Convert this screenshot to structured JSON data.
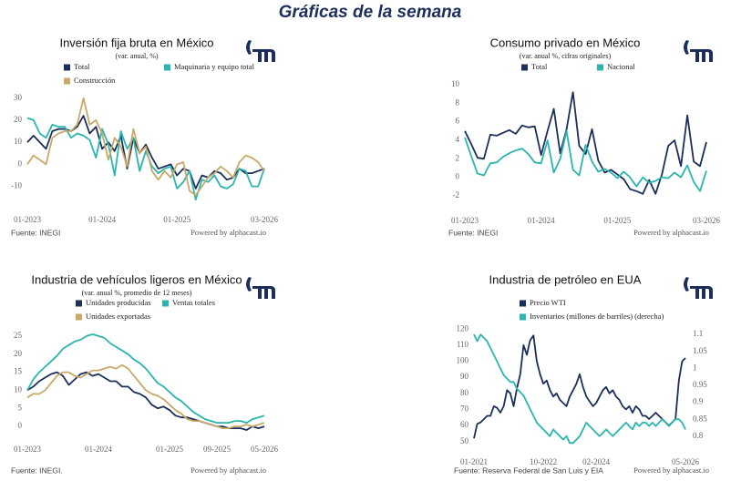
{
  "header": {
    "title": "Gráficas de la semana"
  },
  "chart_data": [
    {
      "type": "line",
      "title": "Inversión fija bruta en México",
      "subtitle": "(var. anual, %)",
      "source": "Fuente: INEGI",
      "credit": "Powered by alphacast.io",
      "grid": false,
      "categories": [
        "01-2023",
        null,
        null,
        null,
        null,
        null,
        null,
        null,
        null,
        null,
        null,
        null,
        "01-2024",
        null,
        null,
        null,
        null,
        null,
        null,
        null,
        null,
        null,
        null,
        null,
        "01-2025",
        null,
        null,
        null,
        null,
        null,
        null,
        null,
        null,
        null,
        null,
        null,
        null,
        null,
        "03-2026"
      ],
      "ylim": [
        -18,
        34
      ],
      "yticks": [
        -10,
        0,
        10,
        20,
        30
      ],
      "series": [
        {
          "name": "Total",
          "color": "#1b2f5a",
          "values": [
            10,
            13,
            10,
            7,
            15,
            16,
            16,
            15,
            17,
            22,
            14,
            17,
            7,
            10,
            6,
            13,
            -2,
            12,
            5,
            9,
            3,
            -2,
            -1,
            0,
            -5,
            -2,
            -3,
            -11,
            -5,
            -6,
            -3,
            -4,
            -7,
            -6,
            -2,
            -4,
            -4,
            -3,
            -2
          ]
        },
        {
          "name": "Maquinaria y equipo total",
          "color": "#2bb5ae",
          "values": [
            21,
            20,
            14,
            12,
            18,
            17,
            17,
            12,
            14,
            13,
            11,
            3,
            16,
            9,
            -5,
            15,
            7,
            12,
            -3,
            6,
            -1,
            -4,
            -2,
            -1,
            -11,
            -8,
            -3,
            -16,
            -7,
            -8,
            -5,
            -10,
            -11,
            -9,
            -2,
            -3,
            -10,
            -10,
            -2
          ]
        },
        {
          "name": "Construcción",
          "color": "#c9a86a",
          "values": [
            0,
            4,
            2,
            0,
            12,
            14,
            15,
            15,
            18,
            30,
            18,
            20,
            14,
            2,
            12,
            8,
            -1,
            16,
            5,
            8,
            -3,
            -7,
            -3,
            -6,
            0,
            1,
            -12,
            -14,
            -10,
            -6,
            -4,
            -1,
            -3,
            -6,
            1,
            4,
            3,
            1,
            -3
          ]
        }
      ]
    },
    {
      "type": "line",
      "title": "Consumo privado en México",
      "subtitle": "(var. anual %, cifras originales)",
      "source": "Fuente: INEGI",
      "credit": "Powered by alphacast.io",
      "grid": false,
      "categories": [
        "01-2023",
        null,
        null,
        null,
        null,
        null,
        null,
        null,
        null,
        null,
        null,
        null,
        "01-2024",
        null,
        null,
        null,
        null,
        null,
        null,
        null,
        null,
        null,
        null,
        null,
        "01-2025",
        null,
        null,
        null,
        null,
        null,
        null,
        null,
        null,
        null,
        null,
        null,
        null,
        null,
        "03-2026"
      ],
      "ylim": [
        -3,
        10.5
      ],
      "yticks": [
        -2,
        0,
        2,
        4,
        6,
        8,
        10
      ],
      "series": [
        {
          "name": "Total",
          "color": "#1b2f5a",
          "values": [
            5.0,
            3.6,
            2.1,
            2.0,
            4.6,
            4.5,
            4.8,
            5.1,
            4.7,
            5.6,
            5.4,
            5.5,
            2.4,
            5.0,
            7.4,
            2.6,
            5.2,
            9.2,
            3.4,
            2.5,
            5.2,
            1.8,
            0.5,
            0.8,
            0.3,
            -0.2,
            -1.3,
            -1.5,
            -1.8,
            -0.3,
            -1.8,
            0.3,
            3.4,
            4.0,
            1.2,
            6.7,
            1.7,
            1.2,
            3.8
          ]
        },
        {
          "name": "Nacional",
          "color": "#2bb5ae",
          "values": [
            4.3,
            2.3,
            0.4,
            0.2,
            1.5,
            1.6,
            2.2,
            2.6,
            2.9,
            3.1,
            2.5,
            1.6,
            1.5,
            4.0,
            0.5,
            2.0,
            5.0,
            0.8,
            0.2,
            3.5,
            1.7,
            0.6,
            0.9,
            0.5,
            -0.1,
            0.6,
            0.0,
            -1.0,
            0.0,
            -0.6,
            -0.4,
            0.0,
            -0.1,
            0.5,
            0.0,
            1.3,
            -0.5,
            -1.5,
            0.7
          ]
        }
      ]
    },
    {
      "type": "line",
      "title": "Industria de vehículos ligeros en México",
      "subtitle": "(var. anual %, promedio de 12 meses)",
      "source": "Fuente: INEGI.",
      "credit": "Powered by alphacast.io",
      "grid": false,
      "categories": [
        "01-2023",
        null,
        null,
        null,
        null,
        null,
        null,
        null,
        null,
        null,
        null,
        null,
        "01-2024",
        null,
        null,
        null,
        null,
        null,
        null,
        null,
        null,
        null,
        null,
        null,
        "01-2025",
        null,
        null,
        null,
        null,
        null,
        null,
        null,
        "09-2025",
        null,
        null,
        null,
        null,
        null,
        null,
        null,
        "05-2026"
      ],
      "ylim": [
        -2,
        27
      ],
      "yticks": [
        0,
        5,
        10,
        15,
        20,
        25
      ],
      "series": [
        {
          "name": "Unidades producidas",
          "color": "#1b2f5a",
          "values": [
            10,
            11,
            12.5,
            13.5,
            14.5,
            15,
            14,
            11.5,
            13,
            14.5,
            15,
            14,
            14.5,
            13.5,
            12.5,
            12.5,
            11,
            11,
            9.5,
            9,
            8,
            6,
            5,
            5.5,
            4.5,
            3,
            2.5,
            2.5,
            2,
            1.5,
            1,
            0.5,
            0,
            0,
            -0.5,
            -0.5,
            -0.5,
            -1,
            0,
            -0.5,
            0
          ]
        },
        {
          "name": "Ventas totales",
          "color": "#2bb5ae",
          "values": [
            10,
            13,
            15,
            16.5,
            18,
            19.5,
            21.5,
            22.5,
            23.5,
            24,
            25,
            25.5,
            25,
            24.5,
            23,
            22,
            21,
            20,
            18.5,
            17.5,
            16,
            14,
            12,
            11,
            9.5,
            8,
            7,
            5.5,
            4,
            3,
            2,
            1.5,
            1,
            1,
            1,
            1.5,
            1.5,
            1,
            2,
            2.5,
            3
          ]
        },
        {
          "name": "Unidades exportadas",
          "color": "#c9a86a",
          "values": [
            8,
            9,
            9,
            10,
            12,
            14,
            15,
            15,
            14,
            13.5,
            14.5,
            15.5,
            15.5,
            16,
            16.5,
            16,
            17,
            16,
            14,
            12,
            10,
            9,
            8.5,
            7.5,
            6,
            4.5,
            3.5,
            2,
            1.5,
            1.5,
            1,
            0.5,
            0,
            -0.5,
            -0.5,
            0,
            0,
            0.5,
            0,
            0.5,
            1
          ]
        }
      ]
    },
    {
      "type": "line",
      "title": "Industria de petróleo en EUA",
      "source": "Fuente: Reserva Federal de San Luis y EIA",
      "credit": "Powered by alphacast.io",
      "grid": false,
      "categories": [
        "01-2021",
        null,
        null,
        null,
        null,
        null,
        null,
        null,
        null,
        null,
        null,
        null,
        null,
        null,
        null,
        null,
        null,
        null,
        null,
        null,
        null,
        "10-2022",
        null,
        null,
        null,
        null,
        null,
        null,
        null,
        null,
        null,
        null,
        null,
        null,
        null,
        null,
        null,
        "02-2024",
        null,
        null,
        null,
        null,
        null,
        null,
        null,
        null,
        null,
        null,
        null,
        null,
        null,
        null,
        null,
        null,
        null,
        null,
        null,
        null,
        null,
        null,
        null,
        null,
        null,
        null,
        "05-2026"
      ],
      "ylim": [
        47,
        123
      ],
      "yticks": [
        50,
        60,
        70,
        80,
        90,
        100,
        110,
        120
      ],
      "y2lim": [
        0.77,
        1.13
      ],
      "y2ticks": [
        0.8,
        0.85,
        0.9,
        0.95,
        1,
        1.05,
        1.1
      ],
      "series": [
        {
          "name": "Precio WTI",
          "color": "#1b2f5a",
          "values": [
            52,
            61,
            62,
            64,
            66,
            66,
            72,
            71,
            68,
            72,
            82,
            80,
            72,
            83,
            92,
            110,
            104,
            113,
            116,
            100,
            92,
            86,
            88,
            82,
            78,
            80,
            76,
            74,
            72,
            78,
            82,
            86,
            92,
            84,
            78,
            75,
            72,
            74,
            78,
            82,
            84,
            80,
            82,
            78,
            76,
            72,
            70,
            72,
            68,
            72,
            70,
            66,
            66,
            64,
            66,
            68,
            66,
            64,
            62,
            60,
            62,
            64,
            88,
            100,
            102
          ]
        },
        {
          "name": "Inventarios (millones de barriles) (derecha)",
          "color": "#2bb5ae",
          "axis": "y2",
          "values": [
            1.1,
            1.08,
            1.1,
            1.09,
            1.08,
            1.06,
            1.04,
            1.02,
            1.0,
            0.98,
            0.97,
            0.96,
            0.96,
            0.94,
            0.93,
            0.92,
            0.9,
            0.88,
            0.86,
            0.84,
            0.83,
            0.82,
            0.81,
            0.8,
            0.82,
            0.81,
            0.8,
            0.79,
            0.8,
            0.78,
            0.78,
            0.79,
            0.8,
            0.82,
            0.84,
            0.83,
            0.82,
            0.81,
            0.8,
            0.81,
            0.82,
            0.81,
            0.8,
            0.81,
            0.82,
            0.83,
            0.84,
            0.83,
            0.82,
            0.84,
            0.83,
            0.84,
            0.84,
            0.83,
            0.84,
            0.83,
            0.84,
            0.85,
            0.84,
            0.83,
            0.84,
            0.85,
            0.85,
            0.84,
            0.82
          ]
        }
      ]
    }
  ]
}
